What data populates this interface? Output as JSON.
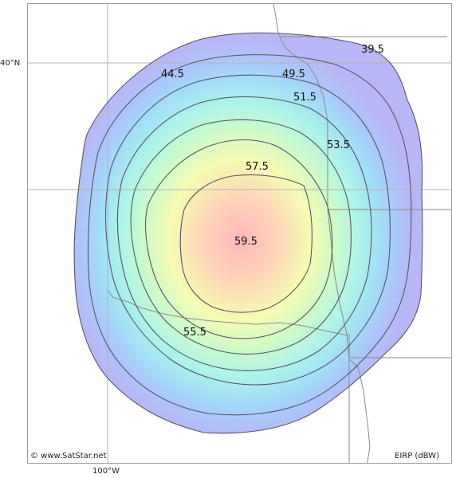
{
  "map": {
    "latitude_label": "40°N",
    "longitude_label": "100°W",
    "copyright": "© www.SatStar.net",
    "unit_label": "EIRP (dBW)"
  },
  "contours": [
    {
      "value": 39.5,
      "label": "39.5",
      "color": "#b7b8f6"
    },
    {
      "value": 44.5,
      "label": "44.5",
      "color": "#aac8f8"
    },
    {
      "value": 49.5,
      "label": "49.5",
      "color": "#a3e0f6"
    },
    {
      "value": 51.5,
      "label": "51.5",
      "color": "#b2f6e6"
    },
    {
      "value": 53.5,
      "label": "53.5",
      "color": "#d6fbc6"
    },
    {
      "value": 55.5,
      "label": "55.5",
      "color": "#f6fbb4"
    },
    {
      "value": 57.5,
      "label": "57.5",
      "color": "#fde1b4"
    },
    {
      "value": 59.5,
      "label": "59.5",
      "color": "#fdbcba"
    }
  ],
  "colors": {
    "contour_line": "#555566",
    "border_line": "#8a8a8a",
    "grid_line": "#b4b4b4"
  }
}
